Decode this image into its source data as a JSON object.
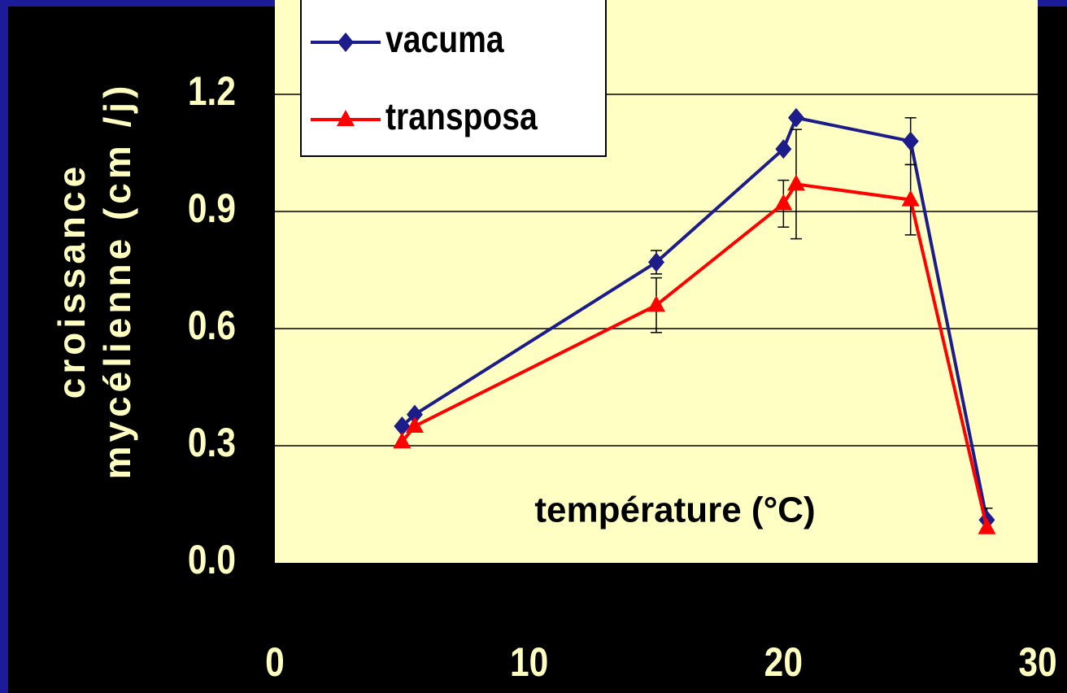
{
  "chart_data": {
    "type": "line",
    "y_label": [
      "croissance",
      "mycélienne (cm /j)"
    ],
    "annotation": "température (°C)",
    "xlim": [
      0,
      30
    ],
    "xticks": [
      0,
      10,
      20,
      30
    ],
    "ylim": [
      0,
      1.4
    ],
    "yticks": [
      {
        "value": 0,
        "label": "0.0"
      },
      0.3,
      0.6,
      0.9,
      1.2
    ],
    "grid": true,
    "legend": "top-left",
    "series": [
      {
        "name": "vacuma",
        "color": "#1c1c8a",
        "marker": "diamond",
        "x": [
          5,
          5.5,
          15,
          20,
          20.5,
          25,
          28
        ],
        "values": [
          0.35,
          0.38,
          0.77,
          1.06,
          1.14,
          1.08,
          0.11
        ],
        "errors": [
          null,
          null,
          0.03,
          null,
          null,
          0.06,
          0.03
        ]
      },
      {
        "name": "transposa",
        "color": "#ff0000",
        "marker": "triangle",
        "x": [
          5,
          5.5,
          15,
          20,
          20.5,
          25,
          28
        ],
        "values": [
          0.31,
          0.35,
          0.66,
          0.92,
          0.97,
          0.93,
          0.09
        ],
        "errors": [
          null,
          null,
          0.07,
          0.06,
          0.14,
          0.09,
          null
        ]
      }
    ]
  }
}
